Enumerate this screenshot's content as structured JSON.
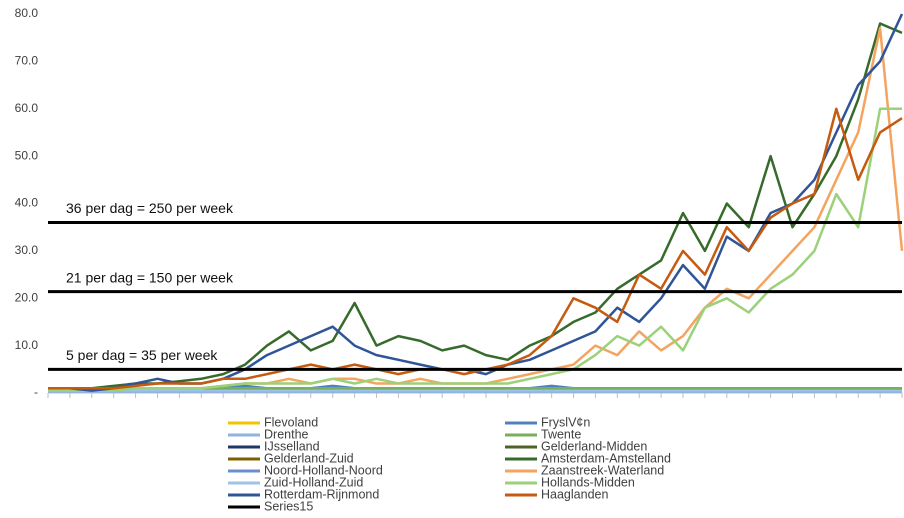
{
  "chart_data": {
    "type": "line",
    "categories": [
      null,
      null,
      null,
      null,
      null,
      null,
      null,
      null,
      null,
      null,
      null,
      null,
      null,
      null,
      null,
      null,
      null,
      null,
      null,
      null,
      null,
      null,
      null,
      null,
      null,
      null,
      null,
      null,
      null,
      null,
      null,
      null,
      null,
      null,
      null,
      null,
      null,
      null,
      null,
      null
    ],
    "ylim": [
      0,
      80
    ],
    "yticks": [
      {
        "value": 0,
        "label": "-"
      },
      {
        "value": 10,
        "label": "10.0"
      },
      {
        "value": 20,
        "label": "20.0"
      },
      {
        "value": 30,
        "label": "30.0"
      },
      {
        "value": 40,
        "label": "40.0"
      },
      {
        "value": 50,
        "label": "50.0"
      },
      {
        "value": 60,
        "label": "60.0"
      },
      {
        "value": 70,
        "label": "70.0"
      },
      {
        "value": 80,
        "label": "80.0"
      }
    ],
    "hlines": [
      {
        "value": 36,
        "label": "36 per dag = 250 per week"
      },
      {
        "value": 21.4,
        "label": "21 per dag = 150 per week"
      },
      {
        "value": 5,
        "label": "5 per dag = 35 per week"
      }
    ],
    "series": [
      {
        "name": "Flevoland",
        "color": "#f2c500",
        "values": [
          0.5,
          0.5,
          0.5,
          0.5,
          0.5,
          0.5,
          0.5,
          0.5,
          0.5,
          0.5,
          0.5,
          0.5,
          0.5,
          0.5,
          0.5,
          0.5,
          0.5,
          0.5,
          0.5,
          0.5,
          0.5,
          0.5,
          0.5,
          0.5,
          0.5,
          0.5,
          0.5,
          0.5,
          0.5,
          0.5,
          0.5,
          0.5,
          0.5,
          0.5,
          0.5,
          0.5,
          0.5,
          0.5,
          0.5,
          0.5
        ]
      },
      {
        "name": "FryslV¢n",
        "color": "#4f81bd",
        "values": [
          0.5,
          1,
          0.5,
          0.5,
          1,
          1,
          0.5,
          1,
          1,
          1.5,
          1,
          1,
          1,
          1.5,
          1,
          1,
          1,
          1,
          1,
          1,
          1,
          1,
          1,
          1.5,
          1,
          1,
          1,
          1,
          1,
          1,
          1,
          1,
          1,
          1,
          1,
          1,
          1,
          1,
          1,
          1
        ]
      },
      {
        "name": "Drenthe",
        "color": "#8db3e2",
        "values": [
          0.3,
          0.3,
          0.3,
          0.3,
          0.3,
          0.3,
          0.3,
          0.3,
          0.3,
          0.3,
          0.3,
          0.3,
          0.3,
          0.3,
          0.3,
          0.3,
          0.3,
          0.3,
          0.3,
          0.3,
          0.3,
          0.3,
          0.3,
          0.3,
          0.3,
          0.3,
          0.3,
          0.3,
          0.3,
          0.3,
          0.3,
          0.3,
          0.3,
          0.3,
          0.3,
          0.3,
          0.3,
          0.3,
          0.3,
          0.3
        ]
      },
      {
        "name": "Twente",
        "color": "#77b05a",
        "values": [
          0.5,
          0.5,
          0.5,
          0.5,
          0.5,
          0.5,
          0.5,
          0.5,
          1,
          1,
          1,
          1,
          1,
          1,
          1,
          1,
          1,
          1,
          1,
          1,
          1,
          1,
          1,
          1,
          1,
          1,
          1,
          1,
          1,
          1,
          1,
          1,
          1,
          1,
          1,
          1,
          1,
          1,
          1,
          1
        ]
      },
      {
        "name": "IJsselland",
        "color": "#1f3864",
        "values": [
          0.5,
          0.5,
          0.5,
          0.5,
          0.5,
          0.5,
          0.5,
          0.5,
          0.5,
          0.5,
          0.5,
          0.5,
          0.5,
          0.5,
          0.5,
          0.5,
          0.5,
          0.5,
          0.5,
          0.5,
          0.5,
          0.5,
          0.5,
          0.5,
          0.5,
          0.5,
          0.5,
          0.5,
          0.5,
          0.5,
          0.5,
          0.5,
          0.5,
          0.5,
          0.5,
          0.5,
          0.5,
          0.5,
          0.5,
          0.5
        ]
      },
      {
        "name": "Gelderland-Midden",
        "color": "#4f6228",
        "values": [
          0.5,
          0.5,
          0.5,
          0.5,
          0.5,
          0.5,
          0.5,
          0.5,
          0.5,
          0.5,
          0.5,
          0.5,
          0.5,
          0.5,
          0.5,
          0.5,
          0.5,
          0.5,
          0.5,
          0.5,
          0.5,
          0.5,
          0.5,
          0.5,
          0.5,
          0.5,
          0.5,
          0.5,
          0.5,
          0.5,
          0.5,
          0.5,
          0.5,
          0.5,
          0.5,
          0.5,
          0.5,
          0.5,
          0.5,
          0.5
        ]
      },
      {
        "name": "Gelderland-Zuid",
        "color": "#7f6000",
        "values": [
          0.5,
          0.5,
          0.5,
          0.5,
          0.5,
          0.5,
          0.5,
          0.5,
          0.5,
          0.5,
          0.5,
          0.5,
          0.5,
          0.5,
          0.5,
          0.5,
          0.5,
          0.5,
          0.5,
          0.5,
          0.5,
          0.5,
          0.5,
          0.5,
          0.5,
          0.5,
          0.5,
          0.5,
          0.5,
          0.5,
          0.5,
          0.5,
          0.5,
          0.5,
          0.5,
          0.5,
          0.5,
          0.5,
          0.5,
          0.5
        ]
      },
      {
        "name": "Amsterdam-Amstelland",
        "color": "#376b2c",
        "values": [
          1,
          1,
          1,
          1.5,
          2,
          2,
          2.5,
          3,
          4,
          6,
          10,
          13,
          9,
          11,
          19,
          10,
          12,
          11,
          9,
          10,
          8,
          7,
          10,
          12,
          15,
          17,
          22,
          25,
          28,
          38,
          30,
          40,
          35,
          50,
          35,
          42,
          50,
          62,
          78,
          76
        ]
      },
      {
        "name": "Noord-Holland-Noord",
        "color": "#6a8fd0",
        "values": [
          0.5,
          0.5,
          0.5,
          0.5,
          0.5,
          0.5,
          0.5,
          0.5,
          0.5,
          0.5,
          0.5,
          0.5,
          0.5,
          0.5,
          0.5,
          0.5,
          0.5,
          0.5,
          0.5,
          0.5,
          0.5,
          0.5,
          0.5,
          0.5,
          0.5,
          0.5,
          0.5,
          0.5,
          0.5,
          0.5,
          0.5,
          0.5,
          0.5,
          0.5,
          0.5,
          0.5,
          0.5,
          0.5,
          0.5,
          0.5
        ]
      },
      {
        "name": "Zaanstreek-Waterland",
        "color": "#f4a460",
        "values": [
          0.5,
          0.5,
          0.5,
          1,
          1,
          1,
          1,
          1,
          1.5,
          2,
          2,
          3,
          2,
          3,
          3,
          2,
          2,
          3,
          2,
          2,
          2,
          3,
          4,
          5,
          6,
          10,
          8,
          13,
          9,
          12,
          18,
          22,
          20,
          25,
          30,
          35,
          45,
          55,
          77,
          30
        ]
      },
      {
        "name": "Zuid-Holland-Zuid",
        "color": "#9dc3e6",
        "values": [
          0.5,
          0.5,
          0.5,
          0.5,
          0.5,
          0.5,
          0.5,
          0.5,
          0.5,
          0.5,
          0.5,
          0.5,
          0.5,
          0.5,
          0.5,
          0.5,
          0.5,
          0.5,
          0.5,
          0.5,
          0.5,
          0.5,
          0.5,
          0.5,
          0.5,
          0.5,
          0.5,
          0.5,
          0.5,
          0.5,
          0.5,
          0.5,
          0.5,
          0.5,
          0.5,
          0.5,
          0.5,
          0.5,
          0.5,
          0.5
        ]
      },
      {
        "name": "Hollands-Midden",
        "color": "#9bd17a",
        "values": [
          0.5,
          0.5,
          0.5,
          0.5,
          1,
          1,
          1,
          1,
          1.5,
          2,
          2,
          2,
          2,
          3,
          2,
          3,
          2,
          2,
          2,
          2,
          2,
          2,
          3,
          4,
          5,
          8,
          12,
          10,
          14,
          9,
          18,
          20,
          17,
          22,
          25,
          30,
          42,
          35,
          60,
          60
        ]
      },
      {
        "name": "Rotterdam-Rijnmond",
        "color": "#2f5597",
        "values": [
          1,
          1,
          0.5,
          1,
          2,
          3,
          2,
          2,
          3,
          5,
          8,
          10,
          12,
          14,
          10,
          8,
          7,
          6,
          5,
          5,
          4,
          6,
          7,
          9,
          11,
          13,
          18,
          15,
          20,
          27,
          22,
          33,
          30,
          38,
          40,
          45,
          55,
          65,
          70,
          80
        ]
      },
      {
        "name": "Haaglanden",
        "color": "#c55a11",
        "values": [
          1,
          1,
          1,
          1,
          1.5,
          2,
          2,
          2,
          3,
          3,
          4,
          5,
          6,
          5,
          6,
          5,
          4,
          5,
          5,
          4,
          5,
          6,
          8,
          12,
          20,
          18,
          15,
          25,
          22,
          30,
          25,
          35,
          30,
          37,
          40,
          42,
          60,
          45,
          55,
          58
        ]
      },
      {
        "name": "Series15",
        "color": "#000000",
        "values": [
          null,
          null,
          null,
          null,
          null,
          null,
          null,
          null,
          null,
          null,
          null,
          null,
          null,
          null,
          null,
          null,
          null,
          null,
          null,
          null,
          null,
          null,
          null,
          null,
          null,
          null,
          null,
          null,
          null,
          null,
          null,
          null,
          null,
          null,
          null,
          null,
          null,
          null,
          null,
          null
        ]
      }
    ]
  }
}
